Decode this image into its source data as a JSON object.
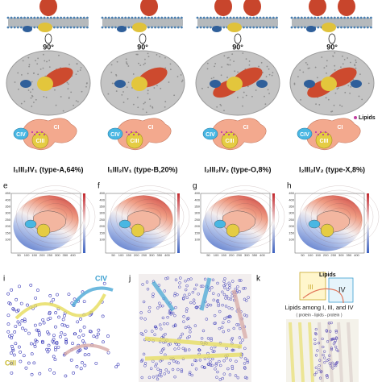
{
  "rotation_labels": [
    "90°",
    "90°",
    "90°",
    "90°"
  ],
  "lipids_legend": "Lipids",
  "models": [
    {
      "cartoon_labels": [
        "CI",
        "CIII",
        "CIV"
      ],
      "caption": "I₁III₂IV₁ (type-A,64%)"
    },
    {
      "cartoon_labels": [
        "CI",
        "CIII",
        "CIV"
      ],
      "caption": "I₁III₂IV₁ (type-B,20%)"
    },
    {
      "cartoon_labels": [
        "CI",
        "CIII",
        "CIV"
      ],
      "caption": "I₂III₂IV₂ (type-O,8%)"
    },
    {
      "cartoon_labels": [
        "CI",
        "CIII",
        "CIV"
      ],
      "caption": "I₂III₂IV₂ (type-X,8%)"
    }
  ],
  "heatmaps": [
    {
      "panel": "e",
      "xticks": [
        50,
        100,
        150,
        200,
        250,
        300,
        350,
        400
      ],
      "yticks": [
        100,
        150,
        200,
        250,
        300,
        350,
        400,
        450
      ]
    },
    {
      "panel": "f",
      "xticks": [
        50,
        100,
        150,
        200,
        250,
        300,
        350,
        400
      ],
      "yticks": [
        100,
        150,
        200,
        250,
        300,
        350,
        400,
        450
      ]
    },
    {
      "panel": "g",
      "xticks": [
        50,
        100,
        150,
        200,
        250,
        300,
        350,
        400
      ],
      "yticks": [
        100,
        150,
        200,
        250,
        300,
        350,
        400,
        450
      ]
    },
    {
      "panel": "h",
      "xticks": [
        50,
        100,
        150,
        200,
        250,
        300,
        350,
        400
      ],
      "yticks": [
        100,
        150,
        200,
        250,
        300,
        350,
        400,
        450
      ]
    }
  ],
  "panel_i": {
    "letter": "i",
    "labels": [
      "CIV",
      "CIII"
    ]
  },
  "panel_j": {
    "letter": "j"
  },
  "panel_k": {
    "letter": "k",
    "lipids": "Lipids",
    "left": "III",
    "right": "IV",
    "title": "Lipids among I, III, and IV",
    "subtitle": "( protein - lipids - protein )"
  }
}
